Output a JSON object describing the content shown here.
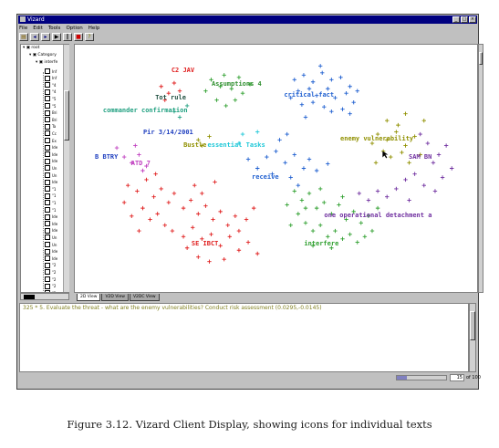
{
  "window": {
    "title": "Vizard"
  },
  "menu": {
    "items": [
      "File",
      "Edit",
      "Tools",
      "Option",
      "Help"
    ]
  },
  "tree": {
    "nodes": [
      {
        "label": "root",
        "level": 0
      },
      {
        "label": "Category",
        "level": 1
      },
      {
        "label": "interfe",
        "level": 2
      }
    ],
    "leaves": [
      "Inf",
      "Inf",
      "\"4",
      "\"4",
      "\"5",
      "\"5",
      "Bri",
      "Bri",
      "Ta",
      "Cc",
      "Ex",
      "Ide",
      "Ide",
      "Ide",
      "Un",
      "Un",
      "Ide",
      "\"1",
      "\"1",
      "\"1",
      "\"1",
      "Ide",
      "Ide",
      "Ide",
      "Un",
      "Un",
      "Ide",
      "Ide",
      "\"2",
      "\"2",
      "\"2",
      "\"2",
      "\"2"
    ]
  },
  "view_tabs": [
    "2D View",
    "V2D View",
    "V2DC View"
  ],
  "active_tab": "2D View",
  "text_pane": {
    "line": "325 * 5. Evaluate the threat - what are the enemy vulnerabilities? Conduct risk assessment (0.0295,-0.0145)"
  },
  "status": {
    "page_value": "15",
    "page_of": "of 100",
    "progress": 0.2
  },
  "caption": "Figure 3.12. Vizard Client Display, showing icons for individual texts",
  "colors": {
    "title_bar": "#000080",
    "chrome": "#c0c0c0",
    "red": "#e02020",
    "green": "#30a030",
    "blue": "#2060d0",
    "olive": "#909000",
    "purple": "#7030a0",
    "teal": "#20a080",
    "cyan": "#20c8d8",
    "magenta": "#c040c0",
    "darkgreen": "#207040"
  },
  "icons": {
    "app": "vizard-app-icon",
    "minimize": "minimize-icon",
    "maximize": "maximize-icon",
    "close": "close-icon",
    "toolbar": [
      "open-icon",
      "back-icon",
      "forward-icon",
      "play-icon",
      "pause-icon",
      "stop-icon",
      "help-icon"
    ]
  },
  "chart_data": {
    "type": "scatter",
    "title": "",
    "xlabel": "",
    "ylabel": "",
    "labels": [
      {
        "text": "C2 JAV",
        "color": "#e02020"
      },
      {
        "text": "Assumptions 4",
        "color": "#309030"
      },
      {
        "text": "critical fact",
        "color": "#2060d0"
      },
      {
        "text": "Tot rule",
        "color": "#205040"
      },
      {
        "text": "commander confirmation",
        "color": "#20a080"
      },
      {
        "text": "Pir 3/14/2001",
        "color": "#2040c0"
      },
      {
        "text": "Bustle",
        "color": "#909000"
      },
      {
        "text": "essential Tasks",
        "color": "#20c8d8"
      },
      {
        "text": "enemy vulnerability",
        "color": "#909000"
      },
      {
        "text": "B BTRY",
        "color": "#2040c0"
      },
      {
        "text": "ATD 7",
        "color": "#c040c0"
      },
      {
        "text": "SAM BN",
        "color": "#7030a0"
      },
      {
        "text": "receive",
        "color": "#2060d0"
      },
      {
        "text": "one operational detachment a",
        "color": "#7030a0"
      },
      {
        "text": "SE IBCT",
        "color": "#e02020"
      },
      {
        "text": "interfere",
        "color": "#30a030"
      }
    ],
    "series": [
      {
        "color": "#e02020",
        "points": [
          [
            -0.62,
            0.72
          ],
          [
            -0.58,
            0.66
          ],
          [
            -0.55,
            0.75
          ],
          [
            -0.6,
            0.6
          ],
          [
            -0.52,
            0.68
          ],
          [
            -0.8,
            -0.15
          ],
          [
            -0.75,
            -0.2
          ],
          [
            -0.7,
            -0.1
          ],
          [
            -0.66,
            -0.25
          ],
          [
            -0.62,
            -0.18
          ],
          [
            -0.58,
            -0.3
          ],
          [
            -0.55,
            -0.22
          ],
          [
            -0.5,
            -0.35
          ],
          [
            -0.46,
            -0.28
          ],
          [
            -0.42,
            -0.4
          ],
          [
            -0.38,
            -0.33
          ],
          [
            -0.34,
            -0.45
          ],
          [
            -0.3,
            -0.38
          ],
          [
            -0.26,
            -0.5
          ],
          [
            -0.22,
            -0.42
          ],
          [
            -0.72,
            -0.35
          ],
          [
            -0.68,
            -0.45
          ],
          [
            -0.64,
            -0.4
          ],
          [
            -0.6,
            -0.5
          ],
          [
            -0.56,
            -0.55
          ],
          [
            -0.5,
            -0.6
          ],
          [
            -0.45,
            -0.52
          ],
          [
            -0.4,
            -0.62
          ],
          [
            -0.35,
            -0.58
          ],
          [
            -0.3,
            -0.68
          ],
          [
            -0.25,
            -0.6
          ],
          [
            -0.2,
            -0.72
          ],
          [
            -0.15,
            -0.65
          ],
          [
            -0.1,
            -0.75
          ],
          [
            -0.82,
            -0.3
          ],
          [
            -0.78,
            -0.42
          ],
          [
            -0.74,
            -0.55
          ],
          [
            -0.48,
            -0.7
          ],
          [
            -0.42,
            -0.78
          ],
          [
            -0.36,
            -0.82
          ],
          [
            -0.28,
            -0.8
          ],
          [
            -0.2,
            -0.55
          ],
          [
            -0.16,
            -0.45
          ],
          [
            -0.12,
            -0.35
          ],
          [
            -0.44,
            -0.15
          ],
          [
            -0.4,
            -0.22
          ],
          [
            -0.65,
            -0.05
          ],
          [
            -0.33,
            -0.12
          ]
        ]
      },
      {
        "color": "#30a030",
        "points": [
          [
            -0.35,
            0.78
          ],
          [
            -0.3,
            0.72
          ],
          [
            -0.28,
            0.82
          ],
          [
            -0.24,
            0.7
          ],
          [
            -0.2,
            0.8
          ],
          [
            -0.18,
            0.66
          ],
          [
            -0.32,
            0.6
          ],
          [
            -0.27,
            0.55
          ],
          [
            -0.22,
            0.6
          ],
          [
            -0.38,
            0.68
          ],
          [
            -0.14,
            0.74
          ],
          [
            0.1,
            -0.2
          ],
          [
            0.14,
            -0.28
          ],
          [
            0.18,
            -0.22
          ],
          [
            0.22,
            -0.35
          ],
          [
            0.26,
            -0.3
          ],
          [
            0.3,
            -0.4
          ],
          [
            0.34,
            -0.32
          ],
          [
            0.38,
            -0.45
          ],
          [
            0.42,
            -0.38
          ],
          [
            0.46,
            -0.48
          ],
          [
            0.5,
            -0.42
          ],
          [
            0.12,
            -0.4
          ],
          [
            0.16,
            -0.48
          ],
          [
            0.2,
            -0.55
          ],
          [
            0.24,
            -0.5
          ],
          [
            0.28,
            -0.6
          ],
          [
            0.32,
            -0.55
          ],
          [
            0.36,
            -0.62
          ],
          [
            0.4,
            -0.58
          ],
          [
            0.44,
            -0.65
          ],
          [
            0.06,
            -0.32
          ],
          [
            0.08,
            -0.5
          ],
          [
            0.52,
            -0.55
          ],
          [
            0.3,
            -0.7
          ],
          [
            0.2,
            -0.68
          ],
          [
            0.16,
            -0.35
          ],
          [
            0.24,
            -0.18
          ],
          [
            0.36,
            -0.25
          ],
          [
            0.55,
            -0.35
          ],
          [
            0.48,
            -0.6
          ]
        ]
      },
      {
        "color": "#2060d0",
        "points": [
          [
            0.1,
            0.78
          ],
          [
            0.15,
            0.82
          ],
          [
            0.2,
            0.76
          ],
          [
            0.25,
            0.84
          ],
          [
            0.3,
            0.78
          ],
          [
            0.35,
            0.8
          ],
          [
            0.4,
            0.72
          ],
          [
            0.12,
            0.68
          ],
          [
            0.18,
            0.7
          ],
          [
            0.22,
            0.64
          ],
          [
            0.28,
            0.7
          ],
          [
            0.32,
            0.62
          ],
          [
            0.38,
            0.66
          ],
          [
            0.42,
            0.58
          ],
          [
            0.14,
            0.56
          ],
          [
            0.2,
            0.58
          ],
          [
            0.26,
            0.54
          ],
          [
            0.3,
            0.5
          ],
          [
            0.36,
            0.52
          ],
          [
            0.08,
            0.62
          ],
          [
            0.44,
            0.68
          ],
          [
            0.24,
            0.9
          ],
          [
            0.16,
            0.45
          ],
          [
            0.4,
            0.48
          ],
          [
            -0.05,
            0.1
          ],
          [
            0.0,
            0.15
          ],
          [
            0.05,
            0.05
          ],
          [
            0.1,
            0.12
          ],
          [
            0.15,
            0.0
          ],
          [
            -0.1,
            0.0
          ],
          [
            -0.02,
            -0.05
          ],
          [
            0.08,
            -0.08
          ],
          [
            0.18,
            0.08
          ],
          [
            0.22,
            -0.02
          ],
          [
            -0.15,
            0.08
          ],
          [
            0.12,
            -0.15
          ],
          [
            0.28,
            0.04
          ],
          [
            0.02,
            0.25
          ],
          [
            0.06,
            0.3
          ]
        ]
      },
      {
        "color": "#909000",
        "points": [
          [
            0.55,
            0.3
          ],
          [
            0.6,
            0.25
          ],
          [
            0.65,
            0.32
          ],
          [
            0.7,
            0.2
          ],
          [
            0.75,
            0.28
          ],
          [
            0.58,
            0.15
          ],
          [
            0.62,
            0.1
          ],
          [
            0.68,
            0.14
          ],
          [
            0.72,
            0.05
          ],
          [
            0.52,
            0.22
          ],
          [
            0.78,
            0.12
          ],
          [
            0.66,
            0.38
          ],
          [
            0.6,
            0.42
          ],
          [
            0.8,
            0.42
          ],
          [
            0.54,
            0.05
          ],
          [
            0.7,
            0.48
          ],
          [
            -0.42,
            0.25
          ],
          [
            -0.4,
            0.2
          ],
          [
            -0.36,
            0.28
          ]
        ]
      },
      {
        "color": "#7030a0",
        "points": [
          [
            0.7,
            -0.1
          ],
          [
            0.75,
            -0.05
          ],
          [
            0.8,
            -0.15
          ],
          [
            0.85,
            0.05
          ],
          [
            0.9,
            -0.08
          ],
          [
            0.88,
            0.12
          ],
          [
            0.92,
            0.2
          ],
          [
            0.82,
            0.22
          ],
          [
            0.65,
            -0.18
          ],
          [
            0.6,
            -0.25
          ],
          [
            0.55,
            -0.2
          ],
          [
            0.5,
            -0.28
          ],
          [
            0.45,
            -0.22
          ],
          [
            0.95,
            0.0
          ],
          [
            0.78,
            0.3
          ],
          [
            0.72,
            -0.28
          ],
          [
            0.86,
            -0.2
          ]
        ]
      },
      {
        "color": "#c040c0",
        "points": [
          [
            -0.82,
            0.1
          ],
          [
            -0.78,
            0.05
          ],
          [
            -0.74,
            0.12
          ],
          [
            -0.7,
            0.02
          ],
          [
            -0.86,
            0.18
          ],
          [
            -0.76,
            0.2
          ],
          [
            -0.72,
            -0.02
          ]
        ]
      },
      {
        "color": "#20c8d8",
        "points": [
          [
            -0.18,
            0.3
          ],
          [
            -0.1,
            0.32
          ],
          [
            -0.2,
            0.22
          ]
        ]
      },
      {
        "color": "#20a080",
        "points": [
          [
            -0.55,
            0.5
          ],
          [
            -0.48,
            0.55
          ],
          [
            -0.52,
            0.45
          ]
        ]
      }
    ]
  }
}
